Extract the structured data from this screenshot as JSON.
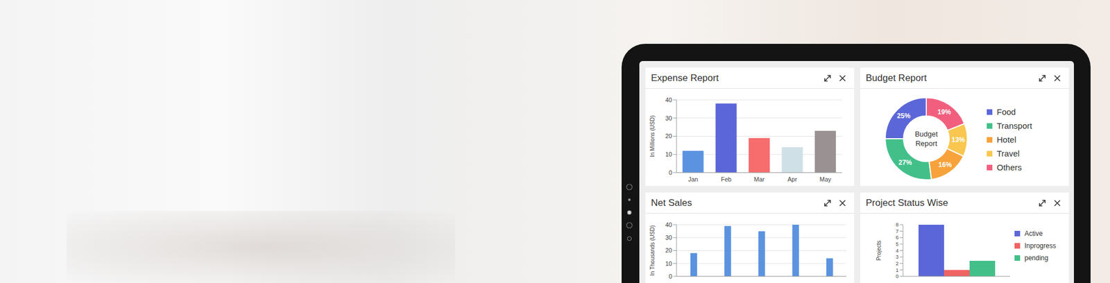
{
  "chart_data": [
    {
      "type": "bar",
      "title": "Expense Report",
      "y_label": "In Millions (USD)",
      "categories": [
        "Jan",
        "Feb",
        "Mar",
        "Apr",
        "May"
      ],
      "values": [
        12,
        38,
        19,
        14,
        23
      ],
      "colors": [
        "#5b93e0",
        "#5b67d8",
        "#f76c6c",
        "#cfe0e6",
        "#9a9292"
      ],
      "ylim": [
        0,
        40
      ],
      "yticks": [
        0,
        10,
        20,
        30,
        40
      ],
      "grid": true
    },
    {
      "type": "pie",
      "title": "Budget Report",
      "annotation": "Budget Report",
      "categories": [
        "Food",
        "Transport",
        "Hotel",
        "Travel",
        "Others"
      ],
      "values": [
        25,
        27,
        16,
        13,
        19
      ],
      "value_labels": [
        "25%",
        "27%",
        "16%",
        "13%",
        "19%"
      ],
      "colors": [
        "#5b67d8",
        "#43c08a",
        "#f7a23b",
        "#f9c74f",
        "#f25f7e"
      ],
      "data_labels": true,
      "legend": "right"
    },
    {
      "type": "bar",
      "title": "Net Sales",
      "y_label": "In Thousands (USD)",
      "categories": [
        null,
        null,
        null,
        null,
        null
      ],
      "values": [
        18,
        39,
        35,
        40,
        14
      ],
      "color": "#5b93e0",
      "ylim": [
        0,
        40
      ],
      "yticks": [
        0,
        10,
        20,
        30,
        40
      ],
      "grid": true,
      "tick_labels": "y"
    },
    {
      "type": "bar",
      "title": "Project Status Wise",
      "y_label": "Projects",
      "categories": [
        null
      ],
      "series": [
        {
          "name": "Active",
          "color": "#5b67d8",
          "values": [
            8
          ]
        },
        {
          "name": "Inprogress",
          "color": "#f06363",
          "values": [
            1
          ]
        },
        {
          "name": "pending",
          "color": "#43c08a",
          "values": [
            2.4
          ]
        }
      ],
      "ylim": [
        0,
        8
      ],
      "yticks": [
        0,
        1,
        2,
        3,
        4,
        5,
        6,
        7,
        8
      ],
      "grid": false,
      "legend": "right",
      "tick_labels": "y"
    }
  ]
}
